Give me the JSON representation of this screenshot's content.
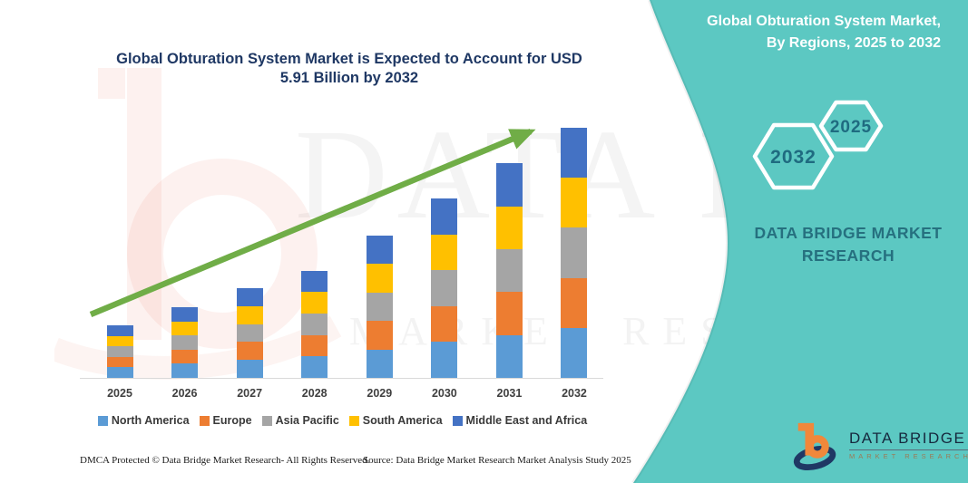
{
  "colors": {
    "accent_teal": "#5CC8C2",
    "title_navy": "#1F3864",
    "arrow_green": "#70AD47",
    "axis_gray": "#D9D9D9"
  },
  "header": {
    "title_lines": [
      "Global Obturation System Market is Expected to Account for USD",
      "5.91 Billion by 2032"
    ]
  },
  "side_panel": {
    "title_lines": [
      "Global Obturation System Market,",
      "By Regions, 2025 to 2032"
    ],
    "hexagon_left_year": "2032",
    "hexagon_right_year": "2025",
    "brand_lines": [
      "DATA BRIDGE MARKET",
      "RESEARCH"
    ]
  },
  "logo": {
    "name": "DATA BRIDGE",
    "subtitle": "MARKET RESEARCH"
  },
  "watermark": {
    "text_primary": "DATA BRIDGE",
    "text_secondary": "MARKET RESEARCH"
  },
  "footer": {
    "left": "DMCA Protected © Data Bridge Market Research-  All Rights Reserved.",
    "right": "Source: Data Bridge Market Research  Market Analysis Study 2025"
  },
  "chart_data": {
    "type": "bar",
    "stacked": true,
    "title": "Global Obturation System Market is Expected to Account for USD 5.91 Billion by 2032",
    "unit": "USD Billion",
    "categories": [
      "2025",
      "2026",
      "2027",
      "2028",
      "2029",
      "2030",
      "2031",
      "2032"
    ],
    "totals": [
      1.24,
      1.67,
      2.12,
      2.53,
      3.36,
      4.24,
      5.07,
      5.91
    ],
    "series": [
      {
        "name": "North America",
        "color": "#5B9BD5",
        "values": [
          0.248,
          0.334,
          0.424,
          0.506,
          0.672,
          0.848,
          1.014,
          1.182
        ]
      },
      {
        "name": "Europe",
        "color": "#ED7D31",
        "values": [
          0.248,
          0.334,
          0.424,
          0.506,
          0.672,
          0.848,
          1.014,
          1.182
        ]
      },
      {
        "name": "Asia Pacific",
        "color": "#A5A5A5",
        "values": [
          0.248,
          0.334,
          0.424,
          0.506,
          0.672,
          0.848,
          1.014,
          1.182
        ]
      },
      {
        "name": "South America",
        "color": "#FFC000",
        "values": [
          0.248,
          0.334,
          0.424,
          0.506,
          0.672,
          0.848,
          1.014,
          1.182
        ]
      },
      {
        "name": "Middle East and Africa",
        "color": "#4472C4",
        "values": [
          0.248,
          0.334,
          0.424,
          0.506,
          0.672,
          0.848,
          1.014,
          1.182
        ]
      }
    ],
    "legend_position": "bottom",
    "grid": false,
    "ylim": [
      0,
      6.2
    ],
    "annotations": [
      "upward green trend arrow from 2025 to 2032"
    ]
  }
}
